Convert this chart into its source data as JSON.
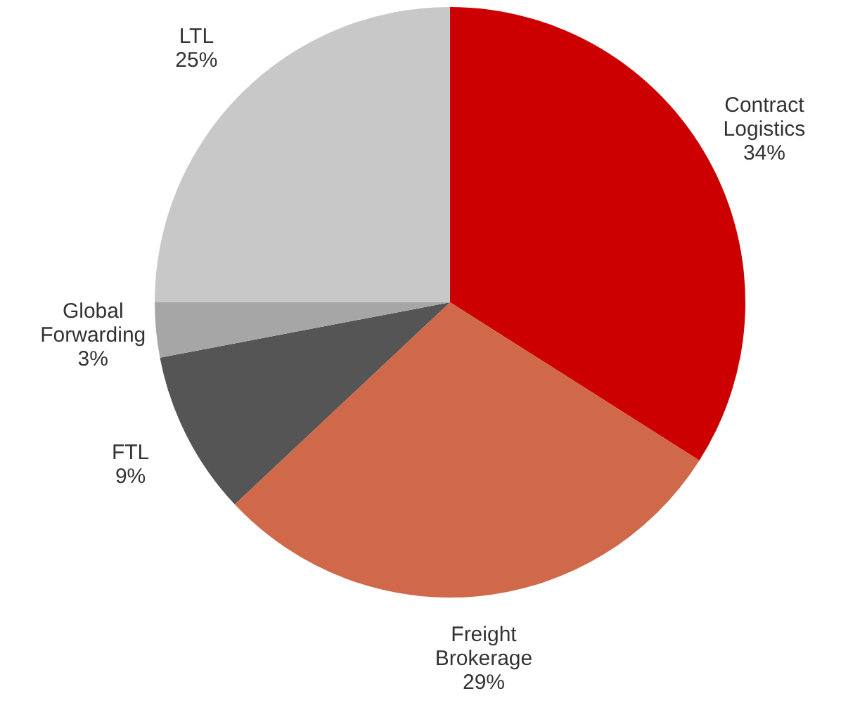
{
  "chart_data": {
    "type": "pie",
    "categories": [
      "Contract Logistics",
      "Freight Brokerage",
      "FTL",
      "Global Forwarding",
      "LTL"
    ],
    "values": [
      34,
      29,
      9,
      3,
      25
    ],
    "colors": [
      "#cc0000",
      "#d0694a",
      "#555555",
      "#a6a6a6",
      "#c8c8c8"
    ],
    "value_labels": [
      "34%",
      "29%",
      "9%",
      "3%",
      "25%"
    ],
    "legend": false
  }
}
